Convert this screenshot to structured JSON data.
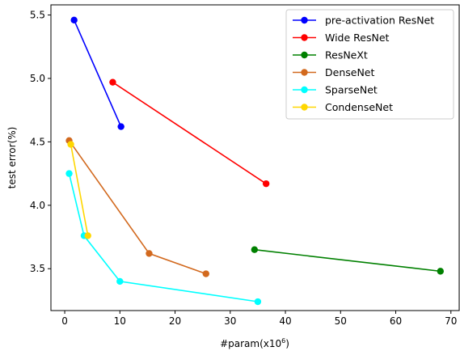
{
  "chart_data": {
    "type": "line",
    "title": "",
    "xlabel": "#param(x10",
    "xlabel_sup": "6",
    "xlabel_suffix": ")",
    "ylabel": "test error(%)",
    "xlim": [
      -2.5,
      71.5
    ],
    "ylim": [
      3.17,
      5.58
    ],
    "xticks": [
      0,
      10,
      20,
      30,
      40,
      50,
      60,
      70
    ],
    "yticks": [
      3.5,
      4.0,
      4.5,
      5.0,
      5.5
    ],
    "ytick_labels": [
      "3.5",
      "4.0",
      "4.5",
      "5.0",
      "5.5"
    ],
    "legend_position": "top-right",
    "grid": false,
    "series": [
      {
        "name": "pre-activation ResNet",
        "color": "#0000ff",
        "x": [
          1.7,
          10.2
        ],
        "y": [
          5.46,
          4.62
        ]
      },
      {
        "name": "Wide ResNet",
        "color": "#ff0000",
        "x": [
          8.7,
          36.5
        ],
        "y": [
          4.97,
          4.17
        ]
      },
      {
        "name": "ResNeXt",
        "color": "#008000",
        "x": [
          34.4,
          68.1
        ],
        "y": [
          3.65,
          3.48
        ]
      },
      {
        "name": "DenseNet",
        "color": "#d2691e",
        "x": [
          0.8,
          15.3,
          25.6
        ],
        "y": [
          4.51,
          3.62,
          3.46
        ]
      },
      {
        "name": "SparseNet",
        "color": "#00ffff",
        "x": [
          0.8,
          3.5,
          10.0,
          35.0
        ],
        "y": [
          4.25,
          3.76,
          3.4,
          3.24
        ]
      },
      {
        "name": "CondenseNet",
        "color": "#ffd700",
        "x": [
          1.1,
          4.2
        ],
        "y": [
          4.48,
          3.76
        ]
      }
    ]
  }
}
